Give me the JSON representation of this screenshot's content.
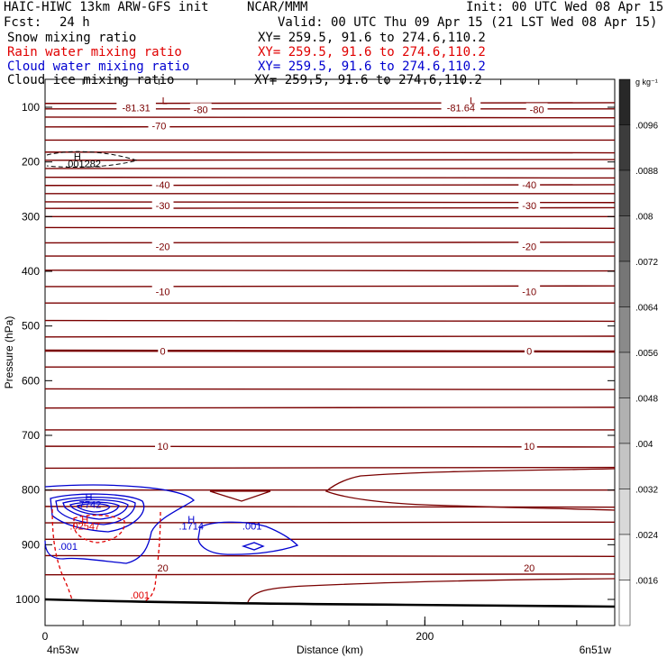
{
  "header": {
    "title_left": "HAIC-HIWC 13km ARW-GFS init",
    "org": "NCAR/MMM",
    "init": "Init: 00 UTC Wed 08 Apr 15",
    "fcst_label": "Fcst:",
    "fcst_value": "24 h",
    "valid": "Valid: 00 UTC Thu 09 Apr 15 (21 LST Wed 08 Apr 15)"
  },
  "fields": [
    {
      "name": "Snow mixing ratio",
      "xy": "XY= 259.5, 91.6 to 274.6,110.2",
      "color": "#000000"
    },
    {
      "name": "Rain water mixing ratio",
      "xy": "XY= 259.5, 91.6 to 274.6,110.2",
      "color": "#e00000"
    },
    {
      "name": "Cloud water mixing ratio",
      "xy": "XY= 259.5, 91.6 to 274.6,110.2",
      "color": "#0000d0"
    },
    {
      "name": "Cloud ice mixing ratio",
      "xy": "XY= 259.5, 91.6 to 274.6,110.2",
      "color": "#000000"
    }
  ],
  "chart_data": {
    "type": "contour",
    "xlabel": "Distance (km)",
    "ylabel": "Pressure (hPa)",
    "xlim": [
      0,
      300
    ],
    "ylim": [
      50,
      1050
    ],
    "x_ticks": [
      0,
      200
    ],
    "y_ticks": [
      100,
      200,
      300,
      400,
      500,
      600,
      700,
      800,
      900,
      1000
    ],
    "x_endpoints": [
      "4n53w",
      "6n51w"
    ],
    "temperature_labels": [
      {
        "value": "-81.31",
        "x": 48,
        "p": 101
      },
      {
        "value": "-80",
        "x": 82,
        "p": 104
      },
      {
        "value": "-81.64",
        "x": 219,
        "p": 101
      },
      {
        "value": "-80",
        "x": 259,
        "p": 104
      },
      {
        "value": "-70",
        "x": 60,
        "p": 134
      },
      {
        "value": "-40",
        "x": 62,
        "p": 242
      },
      {
        "value": "-40",
        "x": 255,
        "p": 242
      },
      {
        "value": "-30",
        "x": 62,
        "p": 280
      },
      {
        "value": "-30",
        "x": 255,
        "p": 280
      },
      {
        "value": "-20",
        "x": 62,
        "p": 355
      },
      {
        "value": "-20",
        "x": 255,
        "p": 355
      },
      {
        "value": "-10",
        "x": 62,
        "p": 437
      },
      {
        "value": "-10",
        "x": 255,
        "p": 437
      },
      {
        "value": "0",
        "x": 62,
        "p": 546
      },
      {
        "value": "0",
        "x": 255,
        "p": 546
      },
      {
        "value": "10",
        "x": 62,
        "p": 720
      },
      {
        "value": "10",
        "x": 255,
        "p": 720
      },
      {
        "value": "20",
        "x": 62,
        "p": 942
      },
      {
        "value": "20",
        "x": 255,
        "p": 942
      }
    ],
    "extrema_labels": [
      {
        "text": "L",
        "x": 63,
        "p": 88,
        "color": "#800000"
      },
      {
        "text": "L",
        "x": 225,
        "p": 88,
        "color": "#800000"
      },
      {
        "text": "H",
        "x": 17,
        "p": 190,
        "color": "#000000"
      },
      {
        "text": ".001282",
        "x": 20,
        "p": 203,
        "color": "#000000"
      },
      {
        "text": "H",
        "x": 23,
        "p": 812,
        "color": "#0000d0"
      },
      {
        "text": ".7742",
        "x": 23,
        "p": 826,
        "color": "#0000d0"
      },
      {
        "text": "H",
        "x": 21,
        "p": 853,
        "color": "#e00000"
      },
      {
        "text": ".02547",
        "x": 21,
        "p": 866,
        "color": "#e00000"
      },
      {
        "text": ".001",
        "x": 12,
        "p": 903,
        "color": "#0000d0"
      },
      {
        "text": "H",
        "x": 77,
        "p": 853,
        "color": "#0000d0"
      },
      {
        "text": ".1714",
        "x": 77,
        "p": 866,
        "color": "#0000d0"
      },
      {
        "text": ".001",
        "x": 109,
        "p": 866,
        "color": "#0000d0"
      },
      {
        "text": ".001",
        "x": 50,
        "p": 992,
        "color": "#e00000"
      }
    ],
    "colorbar": {
      "unit": "g kg⁻¹",
      "labels": [
        ".0096",
        ".0088",
        ".008",
        ".0072",
        ".0064",
        ".0056",
        ".0048",
        ".004",
        ".0032",
        ".0024",
        ".0016"
      ]
    }
  }
}
